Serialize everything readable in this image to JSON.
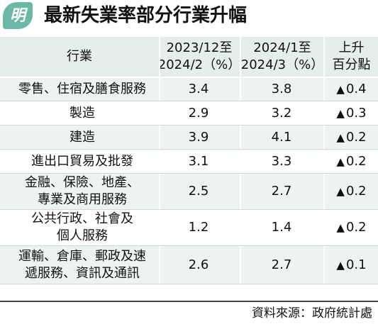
{
  "header": {
    "logo_char": "明",
    "title": "最新失業率部分行業升幅"
  },
  "table": {
    "columns": [
      [
        "行業"
      ],
      [
        "2023/12至",
        "2024/2（%）"
      ],
      [
        "2024/1至",
        "2024/3（%）"
      ],
      [
        "上升",
        "百分點"
      ]
    ],
    "rows": [
      {
        "industry": [
          "零售、住宿及膳食服務"
        ],
        "period1": "3.4",
        "period2": "3.8",
        "up": "0.4"
      },
      {
        "industry": [
          "製造"
        ],
        "period1": "2.9",
        "period2": "3.2",
        "up": "0.3"
      },
      {
        "industry": [
          "建造"
        ],
        "period1": "3.9",
        "period2": "4.1",
        "up": "0.2"
      },
      {
        "industry": [
          "進出口貿易及批發"
        ],
        "period1": "3.1",
        "period2": "3.3",
        "up": "0.2"
      },
      {
        "industry": [
          "金融、保險、地產、",
          "專業及商用服務"
        ],
        "period1": "2.5",
        "period2": "2.7",
        "up": "0.2"
      },
      {
        "industry": [
          "公共行政、社會及",
          "個人服務"
        ],
        "period1": "1.2",
        "period2": "1.4",
        "up": "0.2"
      },
      {
        "industry": [
          "運輸、倉庫、郵政及速",
          "遞服務、資訊及通訊"
        ],
        "period1": "2.6",
        "period2": "2.7",
        "up": "0.1"
      }
    ],
    "up_symbol": "▲",
    "colors": {
      "header_bg": "#e6eeec",
      "row_alt_bg": "#eef3f2",
      "accent": "#6bb8a6"
    }
  },
  "footer": {
    "source": "資料來源：政府統計處"
  }
}
